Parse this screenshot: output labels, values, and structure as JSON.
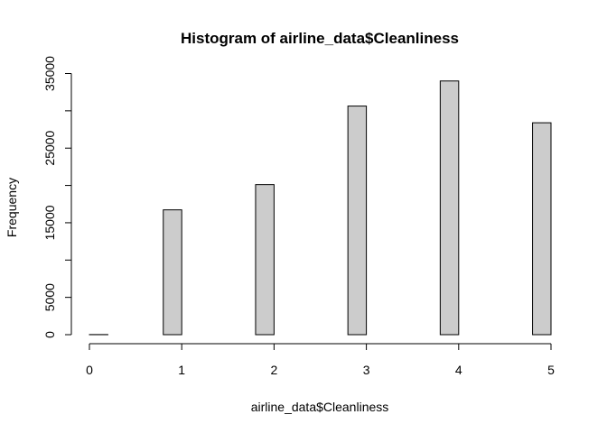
{
  "chart_data": {
    "type": "bar",
    "title": "Histogram of airline_data$Cleanliness",
    "xlabel": "airline_data$Cleanliness",
    "ylabel": "Frequency",
    "xlim": [
      0,
      5
    ],
    "ylim": [
      0,
      35000
    ],
    "x_ticks": [
      "0",
      "1",
      "2",
      "3",
      "4",
      "5"
    ],
    "y_ticks": [
      "0",
      "5000",
      "15000",
      "25000",
      "35000"
    ],
    "bin_width": 0.2,
    "bins": [
      {
        "from": 0.0,
        "to": 0.2,
        "count": 14
      },
      {
        "from": 0.2,
        "to": 0.4,
        "count": 0
      },
      {
        "from": 0.4,
        "to": 0.6,
        "count": 0
      },
      {
        "from": 0.6,
        "to": 0.8,
        "count": 0
      },
      {
        "from": 0.8,
        "to": 1.0,
        "count": 16729
      },
      {
        "from": 1.0,
        "to": 1.2,
        "count": 0
      },
      {
        "from": 1.2,
        "to": 1.4,
        "count": 0
      },
      {
        "from": 1.4,
        "to": 1.6,
        "count": 0
      },
      {
        "from": 1.6,
        "to": 1.8,
        "count": 0
      },
      {
        "from": 1.8,
        "to": 2.0,
        "count": 20113
      },
      {
        "from": 2.0,
        "to": 2.2,
        "count": 0
      },
      {
        "from": 2.2,
        "to": 2.4,
        "count": 0
      },
      {
        "from": 2.4,
        "to": 2.6,
        "count": 0
      },
      {
        "from": 2.6,
        "to": 2.8,
        "count": 0
      },
      {
        "from": 2.8,
        "to": 3.0,
        "count": 30639
      },
      {
        "from": 3.0,
        "to": 3.2,
        "count": 0
      },
      {
        "from": 3.2,
        "to": 3.4,
        "count": 0
      },
      {
        "from": 3.4,
        "to": 3.6,
        "count": 0
      },
      {
        "from": 3.6,
        "to": 3.8,
        "count": 0
      },
      {
        "from": 3.8,
        "to": 4.0,
        "count": 34000
      },
      {
        "from": 4.0,
        "to": 4.2,
        "count": 0
      },
      {
        "from": 4.2,
        "to": 4.4,
        "count": 0
      },
      {
        "from": 4.4,
        "to": 4.6,
        "count": 0
      },
      {
        "from": 4.6,
        "to": 4.8,
        "count": 0
      },
      {
        "from": 4.8,
        "to": 5.0,
        "count": 28400
      }
    ],
    "bar_fill": "#cccccc",
    "bar_stroke": "#000000"
  }
}
